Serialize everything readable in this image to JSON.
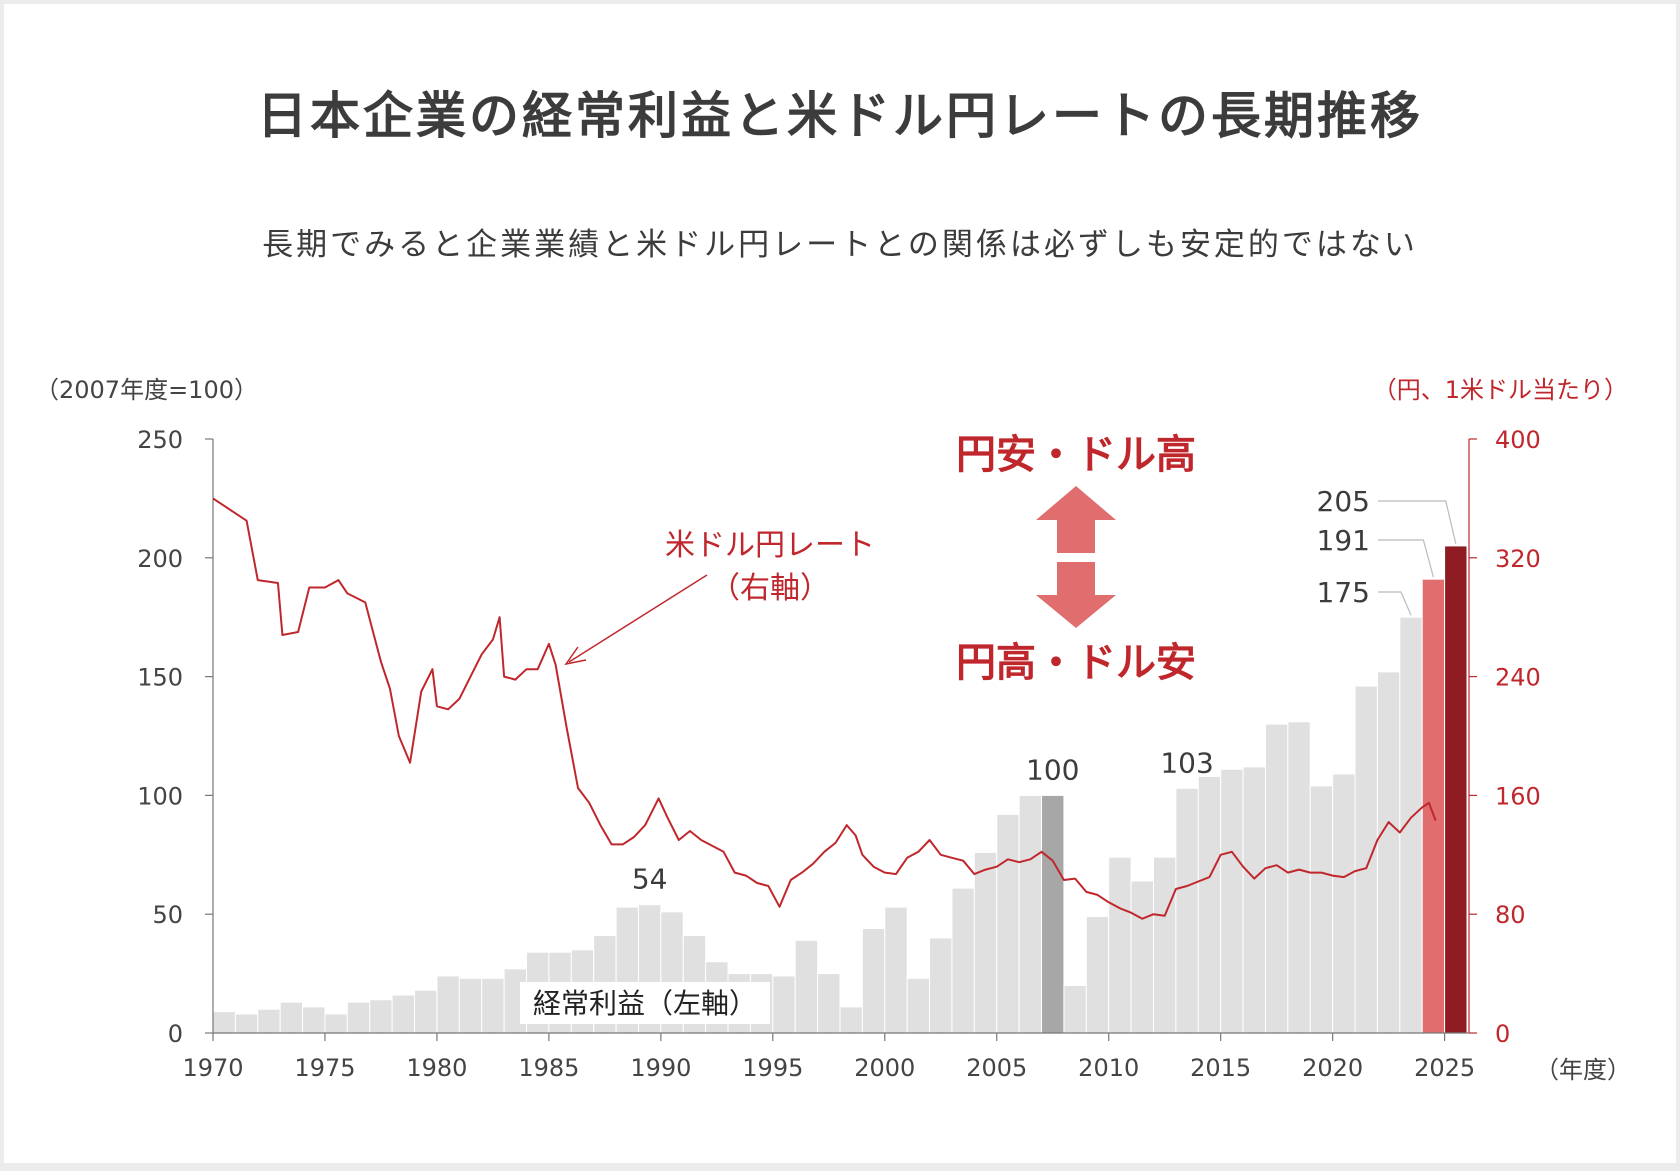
{
  "title": "日本企業の経常利益と米ドル円レートの長期推移",
  "subtitle": "長期でみると企業業績と米ドル円レートとの関係は必ずしも安定的ではない",
  "chart_data": {
    "type": "bar+line",
    "left_axis": {
      "unit_label": "（2007年度=100）",
      "ylim": [
        0,
        250
      ],
      "ticks": [
        "0",
        "50",
        "100",
        "150",
        "200",
        "250"
      ]
    },
    "right_axis": {
      "unit_label": "（円、1米ドル当たり）",
      "ylim": [
        0,
        400
      ],
      "ticks": [
        "0",
        "80",
        "160",
        "240",
        "320",
        "400"
      ],
      "color": "#c0272d"
    },
    "x_axis": {
      "unit_label": "（年度）",
      "ticks": [
        "1970",
        "1975",
        "1980",
        "1985",
        "1990",
        "1995",
        "2000",
        "2005",
        "2010",
        "2015",
        "2020",
        "2025"
      ]
    },
    "profit_series": {
      "name": "経常利益（左軸）",
      "years": [
        1970,
        1971,
        1972,
        1973,
        1974,
        1975,
        1976,
        1977,
        1978,
        1979,
        1980,
        1981,
        1982,
        1983,
        1984,
        1985,
        1986,
        1987,
        1988,
        1989,
        1990,
        1991,
        1992,
        1993,
        1994,
        1995,
        1996,
        1997,
        1998,
        1999,
        2000,
        2001,
        2002,
        2003,
        2004,
        2005,
        2006,
        2007,
        2008,
        2009,
        2010,
        2011,
        2012,
        2013,
        2014,
        2015,
        2016,
        2017,
        2018,
        2019,
        2020,
        2021,
        2022,
        2023,
        2024,
        2025
      ],
      "values": [
        9,
        8,
        10,
        13,
        11,
        8,
        13,
        14,
        16,
        18,
        24,
        23,
        23,
        27,
        34,
        34,
        35,
        41,
        53,
        54,
        51,
        41,
        30,
        25,
        25,
        24,
        39,
        25,
        11,
        44,
        53,
        23,
        40,
        61,
        76,
        92,
        100,
        100,
        20,
        49,
        74,
        64,
        74,
        103,
        108,
        111,
        112,
        130,
        131,
        104,
        109,
        146,
        152,
        175,
        191,
        205
      ],
      "colors": {
        "default": "#e0e0e0",
        "highlight_2007": "#a7a7a7",
        "year_2024": "#e06e6e",
        "year_2025": "#8e1c22"
      }
    },
    "rate_series": {
      "name": "米ドル円レート（右軸）",
      "color": "#c0272d",
      "points": [
        [
          1970.0,
          360
        ],
        [
          1971.5,
          345
        ],
        [
          1972.0,
          305
        ],
        [
          1972.9,
          303
        ],
        [
          1973.1,
          268
        ],
        [
          1973.8,
          270
        ],
        [
          1974.3,
          300
        ],
        [
          1975.0,
          300
        ],
        [
          1975.6,
          305
        ],
        [
          1976.0,
          296
        ],
        [
          1976.8,
          290
        ],
        [
          1977.5,
          250
        ],
        [
          1977.9,
          232
        ],
        [
          1978.3,
          200
        ],
        [
          1978.8,
          182
        ],
        [
          1979.3,
          230
        ],
        [
          1979.8,
          245
        ],
        [
          1980.0,
          220
        ],
        [
          1980.5,
          218
        ],
        [
          1981.0,
          225
        ],
        [
          1981.5,
          240
        ],
        [
          1982.0,
          255
        ],
        [
          1982.5,
          265
        ],
        [
          1982.8,
          280
        ],
        [
          1983.0,
          240
        ],
        [
          1983.5,
          238
        ],
        [
          1984.0,
          245
        ],
        [
          1984.5,
          245
        ],
        [
          1985.0,
          262
        ],
        [
          1985.3,
          248
        ],
        [
          1985.8,
          205
        ],
        [
          1986.3,
          165
        ],
        [
          1986.8,
          155
        ],
        [
          1987.3,
          140
        ],
        [
          1987.8,
          127
        ],
        [
          1988.3,
          127
        ],
        [
          1988.8,
          132
        ],
        [
          1989.3,
          140
        ],
        [
          1989.9,
          158
        ],
        [
          1990.3,
          145
        ],
        [
          1990.8,
          130
        ],
        [
          1991.3,
          136
        ],
        [
          1991.8,
          130
        ],
        [
          1992.3,
          126
        ],
        [
          1992.8,
          122
        ],
        [
          1993.3,
          108
        ],
        [
          1993.8,
          106
        ],
        [
          1994.3,
          101
        ],
        [
          1994.8,
          99
        ],
        [
          1995.3,
          85
        ],
        [
          1995.8,
          103
        ],
        [
          1996.3,
          108
        ],
        [
          1996.8,
          114
        ],
        [
          1997.3,
          122
        ],
        [
          1997.8,
          128
        ],
        [
          1998.3,
          140
        ],
        [
          1998.7,
          133
        ],
        [
          1999.0,
          120
        ],
        [
          1999.5,
          112
        ],
        [
          2000.0,
          108
        ],
        [
          2000.5,
          107
        ],
        [
          2001.0,
          118
        ],
        [
          2001.5,
          122
        ],
        [
          2002.0,
          130
        ],
        [
          2002.5,
          120
        ],
        [
          2003.0,
          118
        ],
        [
          2003.5,
          116
        ],
        [
          2004.0,
          107
        ],
        [
          2004.5,
          110
        ],
        [
          2005.0,
          112
        ],
        [
          2005.5,
          117
        ],
        [
          2006.0,
          115
        ],
        [
          2006.5,
          117
        ],
        [
          2007.0,
          122
        ],
        [
          2007.5,
          116
        ],
        [
          2008.0,
          103
        ],
        [
          2008.5,
          104
        ],
        [
          2009.0,
          95
        ],
        [
          2009.5,
          93
        ],
        [
          2010.0,
          88
        ],
        [
          2010.5,
          84
        ],
        [
          2011.0,
          81
        ],
        [
          2011.5,
          77
        ],
        [
          2012.0,
          80
        ],
        [
          2012.5,
          79
        ],
        [
          2013.0,
          97
        ],
        [
          2013.5,
          99
        ],
        [
          2014.0,
          102
        ],
        [
          2014.5,
          105
        ],
        [
          2015.0,
          120
        ],
        [
          2015.5,
          122
        ],
        [
          2016.0,
          112
        ],
        [
          2016.5,
          104
        ],
        [
          2017.0,
          111
        ],
        [
          2017.5,
          113
        ],
        [
          2018.0,
          108
        ],
        [
          2018.5,
          110
        ],
        [
          2019.0,
          108
        ],
        [
          2019.5,
          108
        ],
        [
          2020.0,
          106
        ],
        [
          2020.5,
          105
        ],
        [
          2021.0,
          109
        ],
        [
          2021.5,
          111
        ],
        [
          2022.0,
          130
        ],
        [
          2022.5,
          142
        ],
        [
          2023.0,
          135
        ],
        [
          2023.5,
          145
        ],
        [
          2024.0,
          152
        ],
        [
          2024.3,
          155
        ],
        [
          2024.6,
          143
        ]
      ]
    },
    "annotations": {
      "bar_values": [
        {
          "year": 1989,
          "text": "54"
        },
        {
          "year": 2007,
          "text": "100"
        },
        {
          "year": 2013,
          "text": "103"
        },
        {
          "year": 2023,
          "text": "175"
        },
        {
          "year": 2024,
          "text": "191"
        },
        {
          "year": 2025,
          "text": "205"
        }
      ],
      "rate_label_line1": "米ドル円レート",
      "rate_label_line2": "（右軸）",
      "arrow_up_label": "円安・ドル高",
      "arrow_down_label": "円高・ドル安",
      "profit_label": "経常利益（左軸）"
    }
  }
}
